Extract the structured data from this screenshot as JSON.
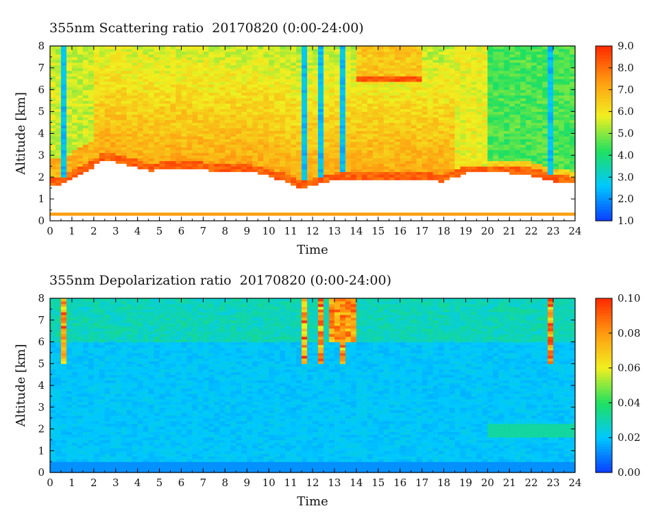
{
  "chart_data": [
    {
      "type": "heatmap",
      "title": "355nm Scattering ratio  20170820 (0:00-24:00)",
      "xlabel": "Time",
      "ylabel": "Altitude [km]",
      "xlim": [
        0,
        24
      ],
      "ylim": [
        0,
        8
      ],
      "x_ticks": [
        "0",
        "1",
        "2",
        "3",
        "4",
        "5",
        "6",
        "7",
        "8",
        "9",
        "10",
        "11",
        "12",
        "13",
        "14",
        "15",
        "16",
        "17",
        "18",
        "19",
        "20",
        "21",
        "22",
        "23",
        "24"
      ],
      "y_ticks": [
        "0",
        "1",
        "2",
        "3",
        "4",
        "5",
        "6",
        "7",
        "8"
      ],
      "colorbar": {
        "min": 1.0,
        "max": 9.0,
        "ticks": [
          "1.0",
          "2.0",
          "3.0",
          "4.0",
          "5.0",
          "6.0",
          "7.0",
          "8.0",
          "9.0"
        ]
      },
      "colorscale": [
        "#0a3cff",
        "#00c8ff",
        "#20e060",
        "#f0f020",
        "#ff9a10",
        "#ff2a00"
      ],
      "cloud_base_km": [
        [
          0.0,
          1.6
        ],
        [
          0.6,
          1.7
        ],
        [
          1.5,
          2.2
        ],
        [
          2.5,
          2.8
        ],
        [
          3.5,
          2.6
        ],
        [
          4.5,
          2.3
        ],
        [
          6.0,
          2.4
        ],
        [
          7.5,
          2.3
        ],
        [
          9.0,
          2.3
        ],
        [
          10.5,
          1.9
        ],
        [
          11.5,
          1.5
        ],
        [
          12.0,
          1.6
        ],
        [
          12.5,
          1.8
        ],
        [
          13.5,
          1.9
        ],
        [
          14.0,
          1.9
        ],
        [
          16.0,
          1.9
        ],
        [
          17.0,
          1.9
        ],
        [
          18.0,
          1.8
        ],
        [
          19.0,
          2.2
        ],
        [
          20.0,
          2.2
        ],
        [
          21.0,
          2.2
        ],
        [
          22.0,
          2.1
        ],
        [
          23.0,
          1.8
        ],
        [
          24.0,
          1.7
        ]
      ],
      "surface_layer_km": [
        0.25,
        0.35
      ],
      "notes": [
        "low scattering columns near 0.6, 11.7, 12.4, 13.3, 22.8 h",
        "elevated layer near 6.5 km 14-17 h"
      ]
    },
    {
      "type": "heatmap",
      "title": "355nm Depolarization ratio  20170820 (0:00-24:00)",
      "xlabel": "Time",
      "ylabel": "Altitude [km]",
      "xlim": [
        0,
        24
      ],
      "ylim": [
        0,
        8
      ],
      "x_ticks": [
        "0",
        "1",
        "2",
        "3",
        "4",
        "5",
        "6",
        "7",
        "8",
        "9",
        "10",
        "11",
        "12",
        "13",
        "14",
        "15",
        "16",
        "17",
        "18",
        "19",
        "20",
        "21",
        "22",
        "23",
        "24"
      ],
      "y_ticks": [
        "0",
        "1",
        "2",
        "3",
        "4",
        "5",
        "6",
        "7",
        "8"
      ],
      "colorbar": {
        "min": 0.0,
        "max": 0.1,
        "ticks": [
          "0.00",
          "0.02",
          "0.04",
          "0.06",
          "0.08",
          "0.10"
        ]
      },
      "colorscale": [
        "#0a3cff",
        "#00c8ff",
        "#20e060",
        "#f0f020",
        "#ff9a10",
        "#ff2a00"
      ],
      "background_value": 0.02,
      "notes": [
        "high depolarization above 6 km near 0.6, 11.7, 12-14 h",
        "elevated layer ~2 km 20-24 h"
      ]
    }
  ]
}
